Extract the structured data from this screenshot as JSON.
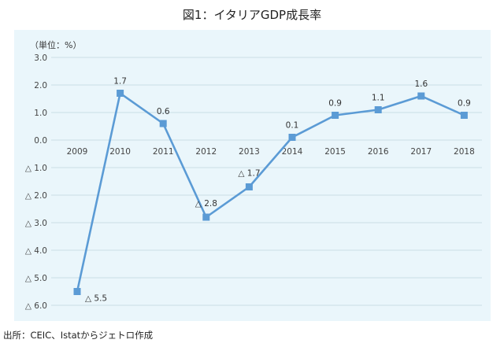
{
  "title": "図1：イタリアGDP成長率",
  "source": "出所：CEIC、Istatからジェトロ作成",
  "chart_data": {
    "type": "line",
    "title": "図1：イタリアGDP成長率",
    "unit_label": "（単位：%）",
    "x": [
      "2009",
      "2010",
      "2011",
      "2012",
      "2013",
      "2014",
      "2015",
      "2016",
      "2017",
      "2018"
    ],
    "series": [
      {
        "values": [
          -5.5,
          1.7,
          0.6,
          -2.8,
          -1.7,
          0.1,
          0.9,
          1.1,
          1.6,
          0.9
        ],
        "labels": [
          "△ 5.5",
          "1.7",
          "0.6",
          "△ 2.8",
          "△ 1.7",
          "0.1",
          "0.9",
          "1.1",
          "1.6",
          "0.9"
        ],
        "color": "#5b9bd5"
      }
    ],
    "yticks": [
      3.0,
      2.0,
      1.0,
      0.0,
      -1.0,
      -2.0,
      -3.0,
      -4.0,
      -5.0,
      -6.0
    ],
    "ytick_labels": [
      "3.0",
      "2.0",
      "1.0",
      "0.0",
      "△ 1.0",
      "△ 2.0",
      "△ 3.0",
      "△ 4.0",
      "△ 5.0",
      "△ 6.0"
    ],
    "ylim": [
      -6.0,
      3.0
    ],
    "grid": true,
    "gridline_color": "#c9dde6",
    "panel_color": "#eaf6fb"
  }
}
